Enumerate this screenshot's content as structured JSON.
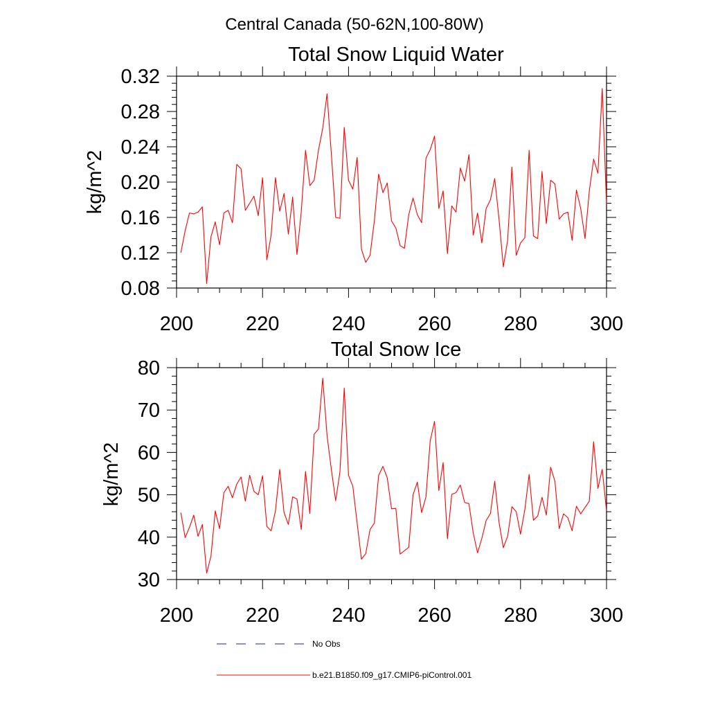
{
  "figure": {
    "title": "Central Canada (50-62N,100-80W)"
  },
  "chart_data": [
    {
      "type": "line",
      "title": "Total Snow Liquid Water",
      "xlabel": "",
      "ylabel": "kg/m^2",
      "xlim": [
        200,
        300
      ],
      "ylim": [
        0.08,
        0.32
      ],
      "xticks": [
        200,
        220,
        240,
        260,
        280,
        300
      ],
      "xtick_labels": [
        "200",
        "220",
        "240",
        "260",
        "280",
        "300"
      ],
      "yticks": [
        0.08,
        0.12,
        0.16,
        0.2,
        0.24,
        0.28,
        0.32
      ],
      "ytick_labels": [
        "0.08",
        "0.12",
        "0.16",
        "0.20",
        "0.24",
        "0.28",
        "0.32"
      ],
      "grid": false,
      "series": [
        {
          "name": "b.e21.B1850.f09_g17.CMIP6-piControl.001",
          "color": "#ff0000",
          "x": [
            201,
            202,
            203,
            204,
            205,
            206,
            207,
            208,
            209,
            210,
            211,
            212,
            213,
            214,
            215,
            216,
            217,
            218,
            219,
            220,
            221,
            222,
            223,
            224,
            225,
            226,
            227,
            228,
            229,
            230,
            231,
            232,
            233,
            234,
            235,
            236,
            237,
            238,
            239,
            240,
            241,
            242,
            243,
            244,
            245,
            246,
            247,
            248,
            249,
            250,
            251,
            252,
            253,
            254,
            255,
            256,
            257,
            258,
            259,
            260,
            261,
            262,
            263,
            264,
            265,
            266,
            267,
            268,
            269,
            270,
            271,
            272,
            273,
            274,
            275,
            276,
            277,
            278,
            279,
            280,
            281,
            282,
            283,
            284,
            285,
            286,
            287,
            288,
            289,
            290,
            291,
            292,
            293,
            294,
            295,
            296,
            297,
            298,
            299,
            300
          ],
          "values": [
            0.12,
            0.145,
            0.165,
            0.164,
            0.166,
            0.172,
            0.085,
            0.138,
            0.155,
            0.129,
            0.165,
            0.168,
            0.154,
            0.22,
            0.215,
            0.168,
            0.176,
            0.184,
            0.162,
            0.205,
            0.112,
            0.14,
            0.205,
            0.167,
            0.187,
            0.141,
            0.183,
            0.118,
            0.166,
            0.236,
            0.196,
            0.202,
            0.236,
            0.261,
            0.3,
            0.232,
            0.16,
            0.159,
            0.262,
            0.202,
            0.192,
            0.228,
            0.124,
            0.109,
            0.117,
            0.156,
            0.209,
            0.188,
            0.199,
            0.156,
            0.148,
            0.128,
            0.125,
            0.163,
            0.182,
            0.163,
            0.154,
            0.227,
            0.237,
            0.252,
            0.17,
            0.19,
            0.119,
            0.173,
            0.166,
            0.216,
            0.201,
            0.231,
            0.14,
            0.165,
            0.131,
            0.17,
            0.18,
            0.204,
            0.158,
            0.104,
            0.134,
            0.217,
            0.117,
            0.131,
            0.137,
            0.236,
            0.139,
            0.136,
            0.212,
            0.153,
            0.202,
            0.198,
            0.158,
            0.164,
            0.166,
            0.134,
            0.191,
            0.17,
            0.136,
            0.19,
            0.226,
            0.21,
            0.306,
            0.175
          ]
        }
      ]
    },
    {
      "type": "line",
      "title": "Total Snow Ice",
      "xlabel": "",
      "ylabel": "kg/m^2",
      "xlim": [
        200,
        300
      ],
      "ylim": [
        30,
        80
      ],
      "xticks": [
        200,
        220,
        240,
        260,
        280,
        300
      ],
      "xtick_labels": [
        "200",
        "220",
        "240",
        "260",
        "280",
        "300"
      ],
      "yticks": [
        30,
        40,
        50,
        60,
        70,
        80
      ],
      "ytick_labels": [
        "30",
        "40",
        "50",
        "60",
        "70",
        "80"
      ],
      "grid": false,
      "series": [
        {
          "name": "b.e21.B1850.f09_g17.CMIP6-piControl.001",
          "color": "#ff0000",
          "x": [
            201,
            202,
            203,
            204,
            205,
            206,
            207,
            208,
            209,
            210,
            211,
            212,
            213,
            214,
            215,
            216,
            217,
            218,
            219,
            220,
            221,
            222,
            223,
            224,
            225,
            226,
            227,
            228,
            229,
            230,
            231,
            232,
            233,
            234,
            235,
            236,
            237,
            238,
            239,
            240,
            241,
            242,
            243,
            244,
            245,
            246,
            247,
            248,
            249,
            250,
            251,
            252,
            253,
            254,
            255,
            256,
            257,
            258,
            259,
            260,
            261,
            262,
            263,
            264,
            265,
            266,
            267,
            268,
            269,
            270,
            271,
            272,
            273,
            274,
            275,
            276,
            277,
            278,
            279,
            280,
            281,
            282,
            283,
            284,
            285,
            286,
            287,
            288,
            289,
            290,
            291,
            292,
            293,
            294,
            295,
            296,
            297,
            298,
            299,
            300
          ],
          "values": [
            45.8,
            39.9,
            42.3,
            45.2,
            40.2,
            43.0,
            31.5,
            35.5,
            46.2,
            42.0,
            50.5,
            52.0,
            49.3,
            52.5,
            54.2,
            48.5,
            54.6,
            50.8,
            50.0,
            54.5,
            42.5,
            41.5,
            46.2,
            56.0,
            45.8,
            43.0,
            49.5,
            49.0,
            41.8,
            55.5,
            45.6,
            64.3,
            65.5,
            77.5,
            64.0,
            56.0,
            48.6,
            55.4,
            75.2,
            54.6,
            52.0,
            43.3,
            34.8,
            36.1,
            41.8,
            43.3,
            54.6,
            56.7,
            54.0,
            46.7,
            46.8,
            36.0,
            36.8,
            37.6,
            50.0,
            53.0,
            45.8,
            49.5,
            62.8,
            67.3,
            51.0,
            57.6,
            39.6,
            50.1,
            50.5,
            52.3,
            48.2,
            47.9,
            41.0,
            36.3,
            39.7,
            43.9,
            45.6,
            53.2,
            43.5,
            37.5,
            40.2,
            47.2,
            46.0,
            40.7,
            46.5,
            54.8,
            44.0,
            45.0,
            49.4,
            45.2,
            56.5,
            53.2,
            42.0,
            45.5,
            44.6,
            41.5,
            47.3,
            45.5,
            47.0,
            48.5,
            62.5,
            51.5,
            56.0,
            46.2
          ]
        }
      ]
    }
  ],
  "legend": {
    "items": [
      {
        "label": "No Obs",
        "color": "#2020a0",
        "style": "dashed"
      },
      {
        "label": "b.e21.B1850.f09_g17.CMIP6-piControl.001",
        "color": "#ff0000",
        "style": "solid"
      }
    ]
  }
}
